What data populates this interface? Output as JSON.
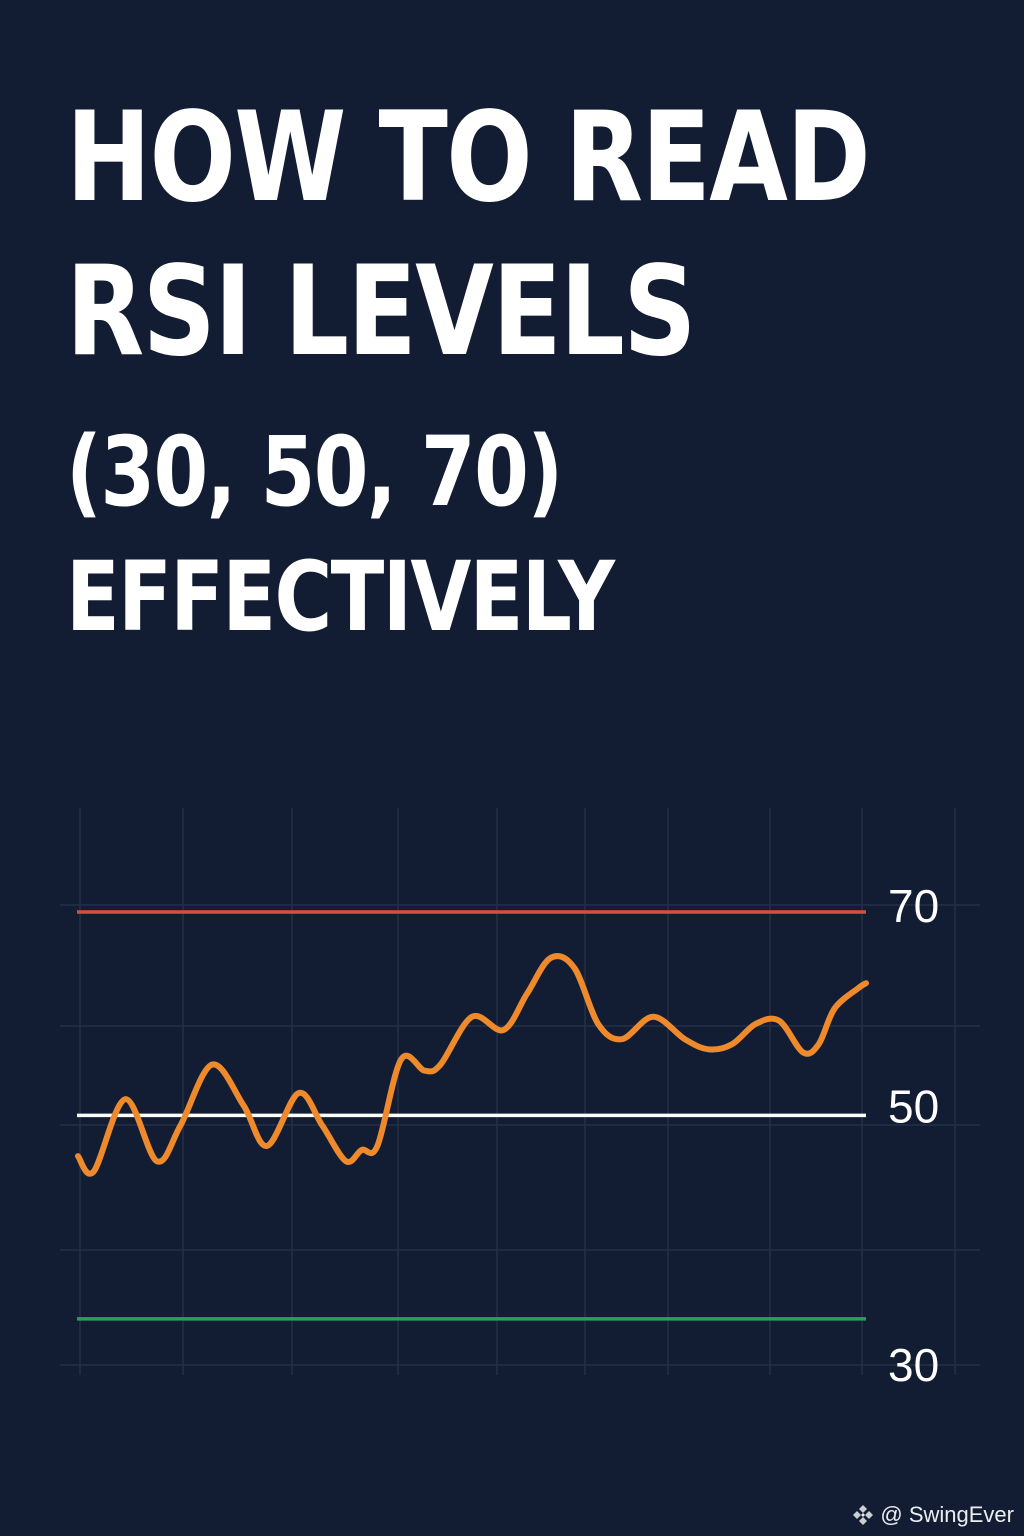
{
  "title": {
    "line1": "HOW TO READ",
    "line2": "RSI LEVELS",
    "line3": "(30, 50, 70)",
    "line4": "EFFECTIVELY"
  },
  "watermark": {
    "handle": "@ SwingEver",
    "icon": "diamond-logo-icon"
  },
  "colors": {
    "background": "#121d33",
    "overbought": "#d9503a",
    "midline": "#ffffff",
    "oversold": "#27a05c",
    "rsi_line": "#ee8a2c",
    "grid": "#223047",
    "text": "#ffffff"
  },
  "chart_data": {
    "type": "line",
    "grid": true,
    "ylim": [
      23,
      82
    ],
    "y_tick_labels": [
      "70",
      "50",
      "30"
    ],
    "reference_lines": [
      {
        "label": "70",
        "value": 70,
        "color": "#d9503a"
      },
      {
        "label": "50",
        "value": 50,
        "color": "#ffffff"
      },
      {
        "label": "30",
        "value": 30,
        "color": "#27a05c"
      }
    ],
    "series": [
      {
        "color": "#ee8a2c",
        "x": [
          0,
          2,
          6,
          10,
          13,
          17,
          21,
          24,
          28,
          31,
          34,
          36,
          38,
          41,
          44,
          46,
          50,
          54,
          57,
          60,
          63,
          66,
          69,
          73,
          77,
          80,
          83,
          86,
          89,
          92,
          94,
          96,
          99,
          100
        ],
        "y": [
          46.0,
          44.5,
          51.6,
          45.5,
          49.0,
          55.0,
          51.0,
          47.0,
          52.2,
          49.0,
          45.5,
          46.6,
          47.0,
          55.5,
          54.4,
          55.0,
          59.7,
          58.4,
          62.0,
          65.5,
          64.5,
          59.0,
          57.5,
          59.7,
          57.5,
          56.5,
          57.0,
          59.0,
          59.3,
          56.2,
          57.0,
          60.5,
          62.5,
          63.0
        ]
      }
    ]
  }
}
